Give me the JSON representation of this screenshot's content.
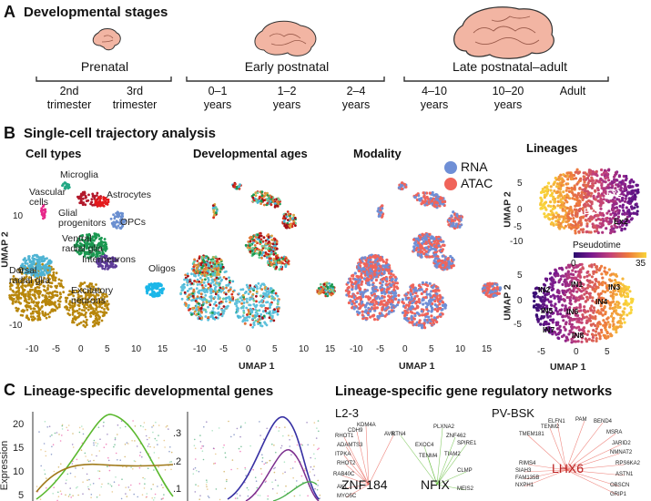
{
  "panelA": {
    "letter": "A",
    "title": "Developmental stages",
    "stages": [
      {
        "label": "Prenatal",
        "ages": [
          [
            "2nd",
            "trimester"
          ],
          [
            "3rd",
            "trimester"
          ]
        ]
      },
      {
        "label": "Early postnatal",
        "ages": [
          [
            "0–1",
            "years"
          ],
          [
            "1–2",
            "years"
          ],
          [
            "2–4",
            "years"
          ]
        ]
      },
      {
        "label": "Late postnatal–adult",
        "ages": [
          [
            "4–10",
            "years"
          ],
          [
            "10–20",
            "years"
          ],
          [
            "Adult",
            ""
          ]
        ]
      }
    ],
    "brain_color": "#f2b5a3"
  },
  "panelB": {
    "letter": "B",
    "title": "Single-cell trajectory analysis",
    "subtitles": [
      "Cell types",
      "Developmental ages",
      "Modality",
      "Lineages"
    ],
    "umap1": "UMAP 1",
    "umap2": "UMAP 2",
    "x_ticks": [
      "-10",
      "-5",
      "0",
      "5",
      "10",
      "15"
    ],
    "y_ticks": [
      "10",
      "0",
      "-10"
    ],
    "cell_types": [
      {
        "name": "Microglia",
        "color": "#22a884"
      },
      {
        "name": "Vascular cells",
        "color": "#e7298a"
      },
      {
        "name": "Astrocytes",
        "color": "#e41a1c"
      },
      {
        "name": "Glial progenitors",
        "color": "#b2182b"
      },
      {
        "name": "OPCs",
        "color": "#6a8fd0"
      },
      {
        "name": "Ventral radial glia",
        "color": "#1a9850"
      },
      {
        "name": "Interneurons",
        "color": "#5e3c99"
      },
      {
        "name": "Dorsal radial glia",
        "color": "#4eb3d3"
      },
      {
        "name": "Excitatory neurons",
        "color": "#b8860b"
      },
      {
        "name": "Oligos",
        "color": "#1ab6e8"
      }
    ],
    "modality_legend": [
      {
        "name": "RNA",
        "color": "#6f8fd6"
      },
      {
        "name": "ATAC",
        "color": "#f0645a"
      }
    ],
    "lineages": {
      "top_labels": [
        "Ex1",
        "Ex3",
        "Ex2"
      ],
      "bottom_labels": [
        "IN2",
        "IN1",
        "IN3",
        "IN5",
        "IN4",
        "IN6",
        "IN7",
        "IN8"
      ],
      "pseudotime_label": "Pseudotime",
      "pseudotime_range": [
        "0",
        "35"
      ],
      "x_ticks": [
        "-5",
        "0",
        "5"
      ],
      "y_ticks_top": [
        "5",
        "0",
        "-5",
        "-10"
      ],
      "y_ticks_bottom": [
        "5",
        "0",
        "-5"
      ]
    }
  },
  "panelC": {
    "letter": "C",
    "title": "Lineage-specific developmental genes",
    "ylabel": "Expression",
    "left_ticks": [
      "20",
      "15",
      "10",
      "5"
    ],
    "right_ticks": [
      ".3",
      ".2",
      ".1"
    ],
    "grn_title": "Lineage-specific gene regulatory networks",
    "networks": [
      {
        "name": "L2-3",
        "hubs": [
          "ZNF184",
          "NFIX"
        ],
        "genes": [
          "KDM4A",
          "CDH9",
          "AVIL",
          "RHOT1",
          "ADAMTS3",
          "ITPKA",
          "RHOT2",
          "RAB40C",
          "AK1",
          "MYO5C",
          "PLXNA2",
          "ZNF462",
          "SPIRE1",
          "EXOC4",
          "TENM4",
          "TIAM2",
          "CLMP",
          "MEIS2",
          "RTN4"
        ]
      },
      {
        "name": "PV-BSK",
        "hubs": [
          "LHX6"
        ],
        "genes": [
          "TENM2",
          "ELFN1",
          "PAM",
          "BEND4",
          "TMEM181",
          "MSRA",
          "JARID2",
          "NMNAT2",
          "RIMS4",
          "SIAH3",
          "FAM135B",
          "NXPH1",
          "RPS6KA2",
          "ASTN1",
          "OBSCN",
          "GRIP1"
        ]
      }
    ]
  }
}
